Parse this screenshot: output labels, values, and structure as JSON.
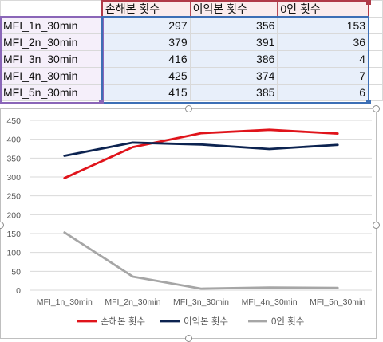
{
  "table": {
    "headers": [
      "손해본 횟수",
      "이익본 횟수",
      "0인 횟수"
    ],
    "rows": [
      {
        "label": "MFI_1n_30min",
        "values": [
          "297",
          "356",
          "153"
        ]
      },
      {
        "label": "MFI_2n_30min",
        "values": [
          "379",
          "391",
          "36"
        ]
      },
      {
        "label": "MFI_3n_30min",
        "values": [
          "416",
          "386",
          "4"
        ]
      },
      {
        "label": "MFI_4n_30min",
        "values": [
          "425",
          "374",
          "7"
        ]
      },
      {
        "label": "MFI_5n_30min",
        "values": [
          "415",
          "385",
          "6"
        ]
      }
    ]
  },
  "chart_data": {
    "type": "line",
    "categories": [
      "MFI_1n_30min",
      "MFI_2n_30min",
      "MFI_3n_30min",
      "MFI_4n_30min",
      "MFI_5n_30min"
    ],
    "series": [
      {
        "name": "손해본 횟수",
        "values": [
          297,
          379,
          416,
          425,
          415
        ],
        "color": "#e0141b"
      },
      {
        "name": "이익본 횟수",
        "values": [
          356,
          391,
          386,
          374,
          385
        ],
        "color": "#0c2350"
      },
      {
        "name": "0인 횟수",
        "values": [
          153,
          36,
          4,
          7,
          6
        ],
        "color": "#a6a6a6"
      }
    ],
    "yticks": [
      "0",
      "50",
      "100",
      "150",
      "200",
      "250",
      "300",
      "350",
      "400",
      "450"
    ],
    "ylim": [
      0,
      450
    ],
    "grid": true,
    "legend_position": "bottom",
    "title": "",
    "xlabel": "",
    "ylabel": ""
  }
}
